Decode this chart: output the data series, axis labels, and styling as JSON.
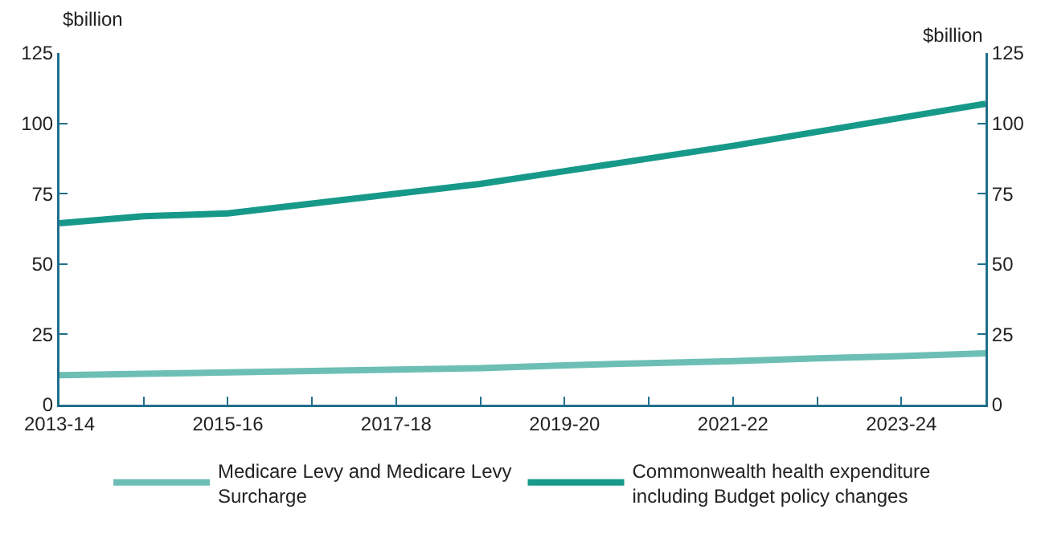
{
  "chart_data": {
    "type": "line",
    "ylabel": "$billion",
    "y2label": "$billion",
    "categories": [
      "2013-14",
      null,
      "2015-16",
      null,
      "2017-18",
      null,
      "2019-20",
      null,
      "2021-22",
      null,
      "2023-24",
      null
    ],
    "series": [
      {
        "name": "Medicare Levy and Medicare Levy Surcharge",
        "color": "#6dbfb5",
        "values": [
          10.5,
          11,
          11.5,
          12,
          12.5,
          13,
          14,
          14.8,
          15.5,
          16.5,
          17.3,
          18.3
        ]
      },
      {
        "name": "Commonwealth health expenditure including Budget policy changes",
        "color": "#17998a",
        "values": [
          64.5,
          67,
          68,
          71.5,
          75,
          78.5,
          83,
          87.5,
          92,
          97,
          102,
          107
        ]
      }
    ],
    "ylim": [
      0,
      125
    ],
    "yticks": [
      0,
      25,
      50,
      75,
      100,
      125
    ],
    "y2lim": [
      0,
      125
    ],
    "y2ticks": [
      0,
      25,
      50,
      75,
      100,
      125
    ],
    "grid": false,
    "legend": "bottom",
    "marker": "none",
    "line_style": "solid"
  }
}
